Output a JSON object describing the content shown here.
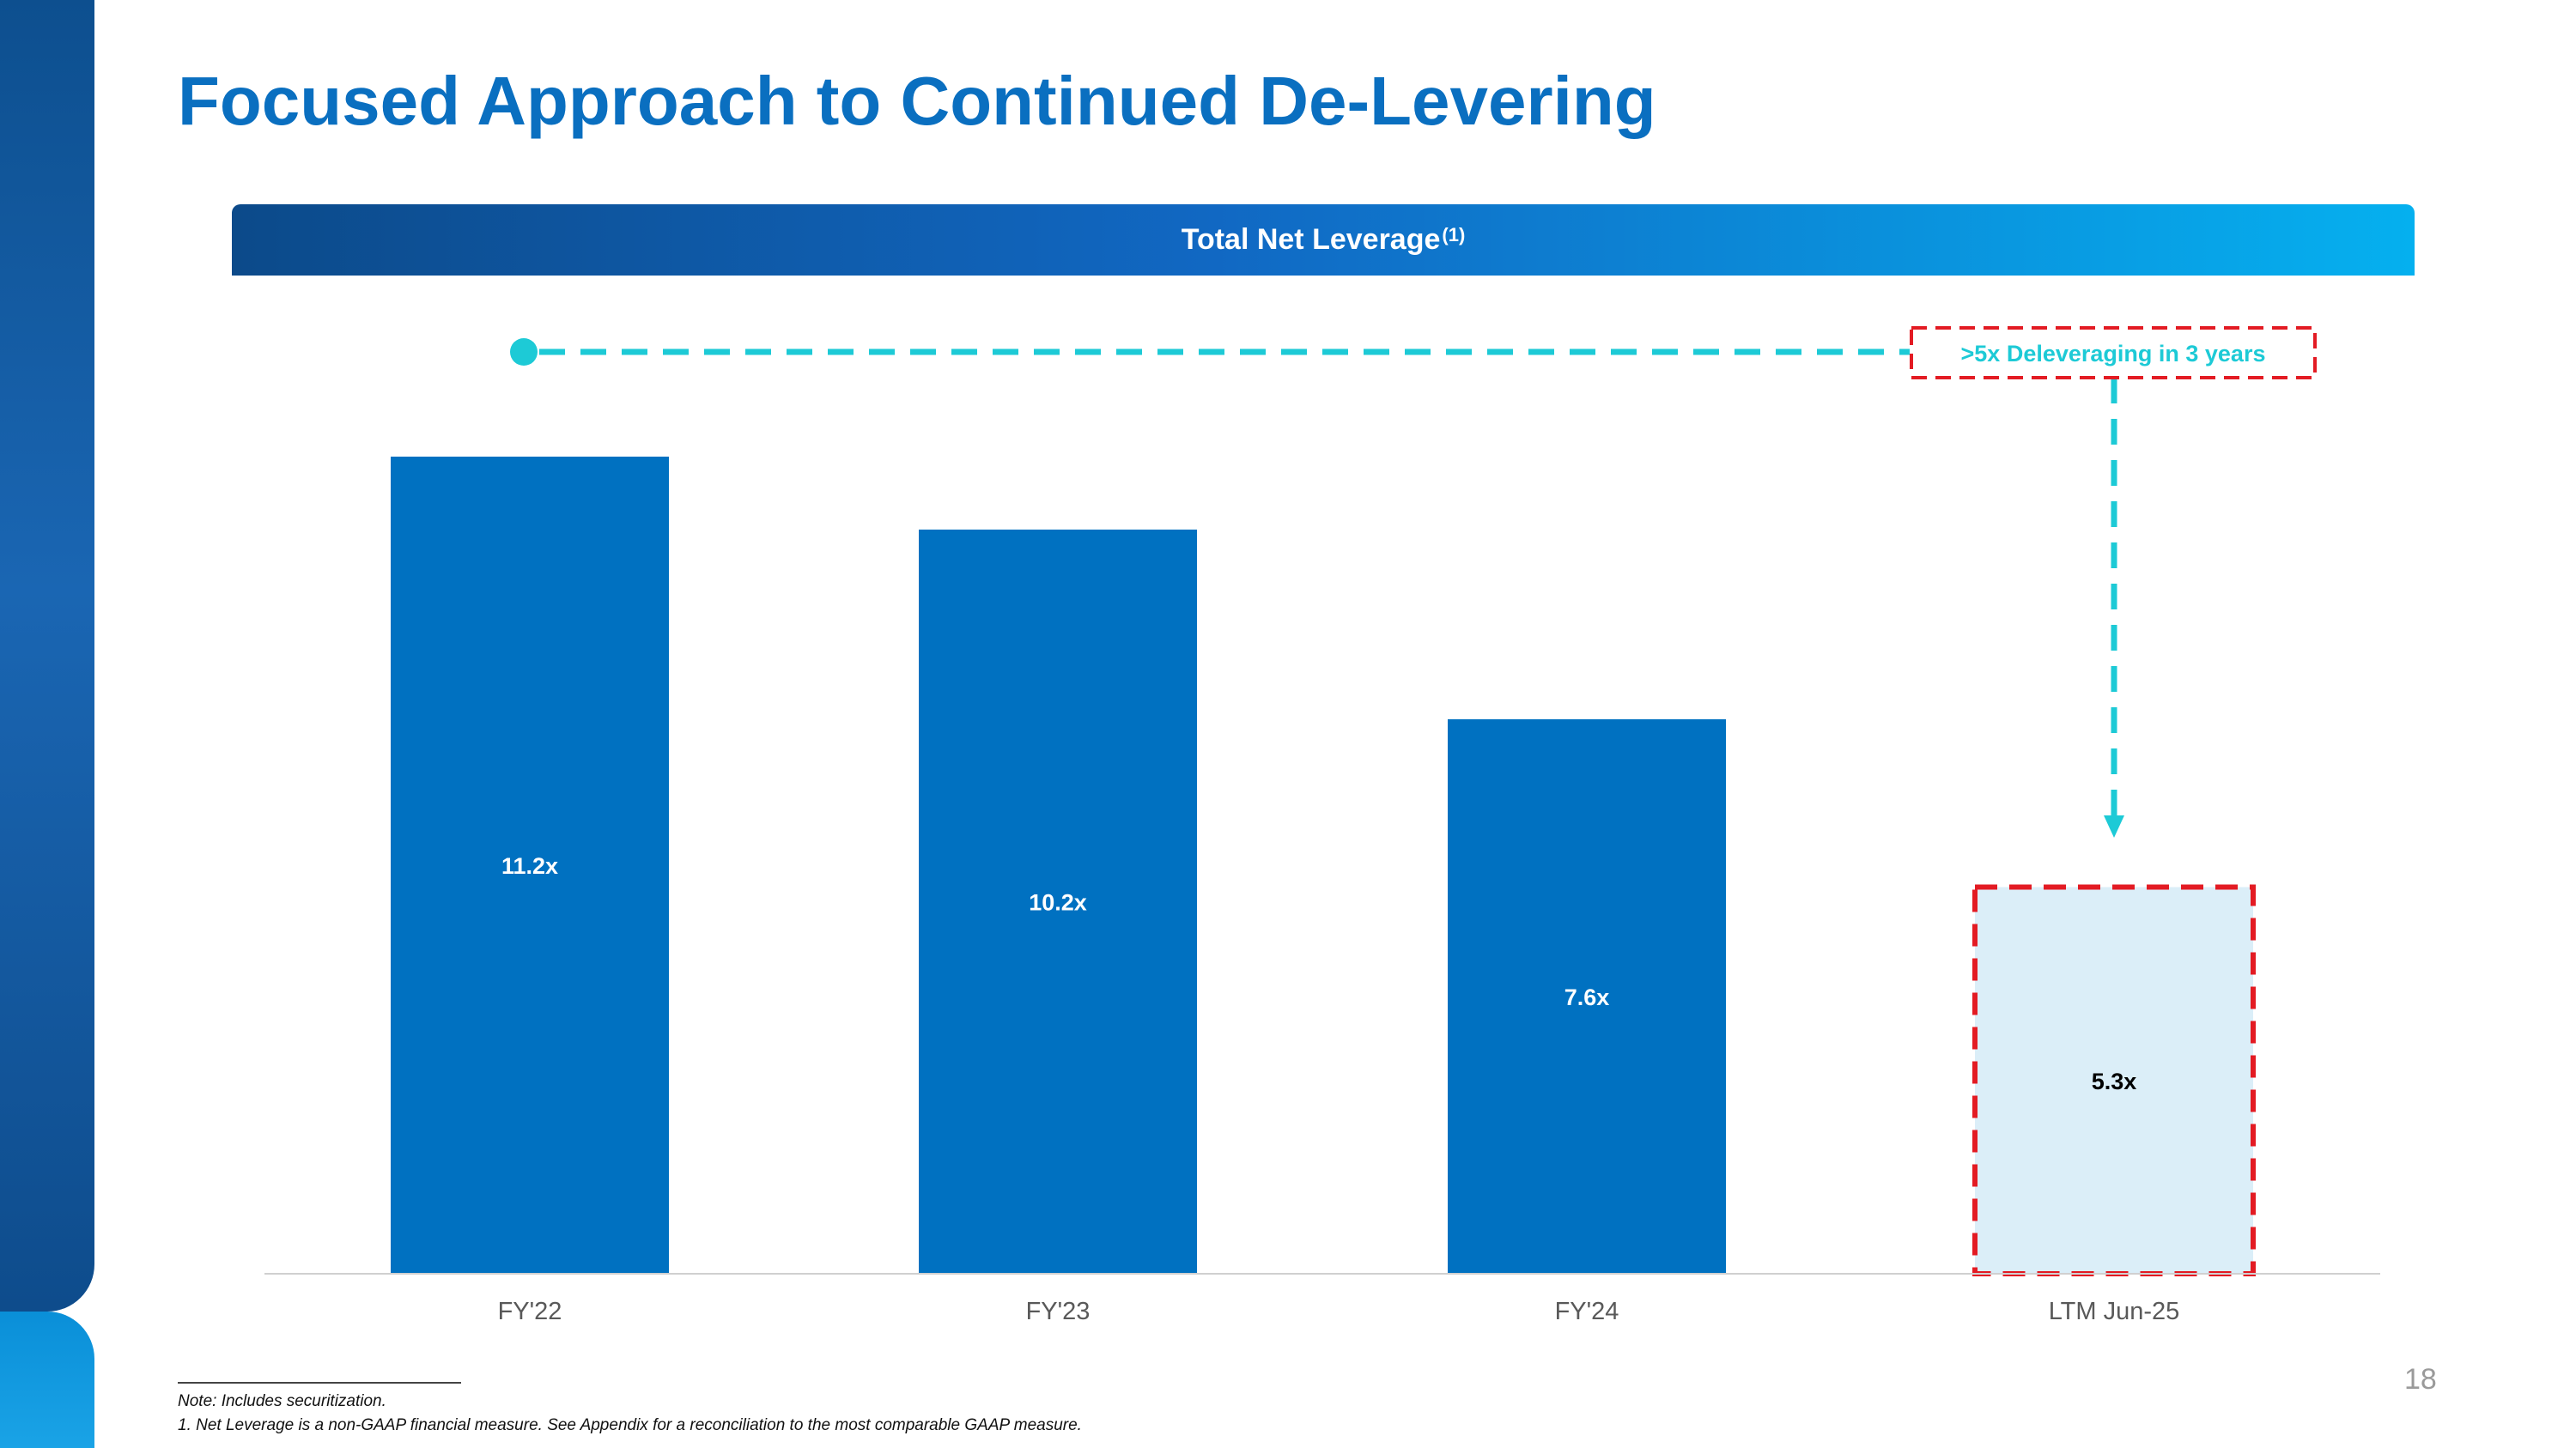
{
  "slide": {
    "title": "Focused Approach to Continued De-Levering",
    "banner_title": "Total Net Leverage",
    "banner_superscript": "(1)",
    "page_number": "18"
  },
  "footnotes": {
    "note": "Note: Includes securitization.",
    "footnote_1": "1. Net Leverage is a non-GAAP financial measure. See Appendix for a reconciliation to the most comparable GAAP measure."
  },
  "colors": {
    "bar": "#0071c1",
    "highlight_bar": "#dbeef8",
    "highlight_border": "#e31b23",
    "arrow": "#1dcad6",
    "title": "#0a6fc0"
  },
  "chart_data": {
    "type": "bar",
    "title": "Total Net Leverage",
    "categories": [
      "FY'22",
      "FY'23",
      "FY'24",
      "LTM Jun-25"
    ],
    "values": [
      11.2,
      10.2,
      7.6,
      5.3
    ],
    "value_labels": [
      "11.2x",
      "10.2x",
      "7.6x",
      "5.3x"
    ],
    "highlighted_index": 3,
    "ylim": [
      0,
      12.0
    ],
    "grid": false,
    "annotation": ">5x Deleveraging in 3 years"
  }
}
